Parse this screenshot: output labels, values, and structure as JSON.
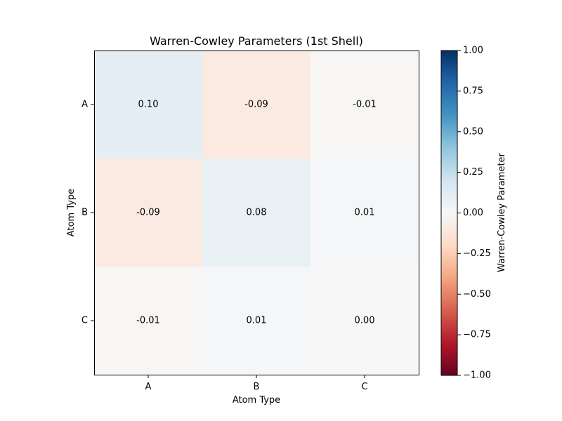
{
  "chart_data": {
    "type": "heatmap",
    "title": "Warren-Cowley Parameters (1st Shell)",
    "xlabel": "Atom Type",
    "ylabel": "Atom Type",
    "x_categories": [
      "A",
      "B",
      "C"
    ],
    "y_categories": [
      "A",
      "B",
      "C"
    ],
    "values": [
      [
        0.1,
        -0.09,
        -0.01
      ],
      [
        -0.09,
        0.08,
        0.01
      ],
      [
        -0.01,
        0.01,
        0.0
      ]
    ],
    "value_labels": [
      [
        "0.10",
        "-0.09",
        "-0.01"
      ],
      [
        "-0.09",
        "0.08",
        "0.01"
      ],
      [
        "-0.01",
        "0.01",
        "0.00"
      ]
    ],
    "colorbar": {
      "label": "Warren-Cowley Parameter",
      "range": [
        -1.0,
        1.0
      ],
      "ticks": [
        1.0,
        0.75,
        0.5,
        0.25,
        0.0,
        -0.25,
        -0.5,
        -0.75,
        -1.0
      ],
      "tick_labels": [
        "1.00",
        "0.75",
        "0.50",
        "0.25",
        "0.00",
        "−0.25",
        "−0.50",
        "−0.75",
        "−1.00"
      ],
      "colormap": "RdBu"
    }
  }
}
